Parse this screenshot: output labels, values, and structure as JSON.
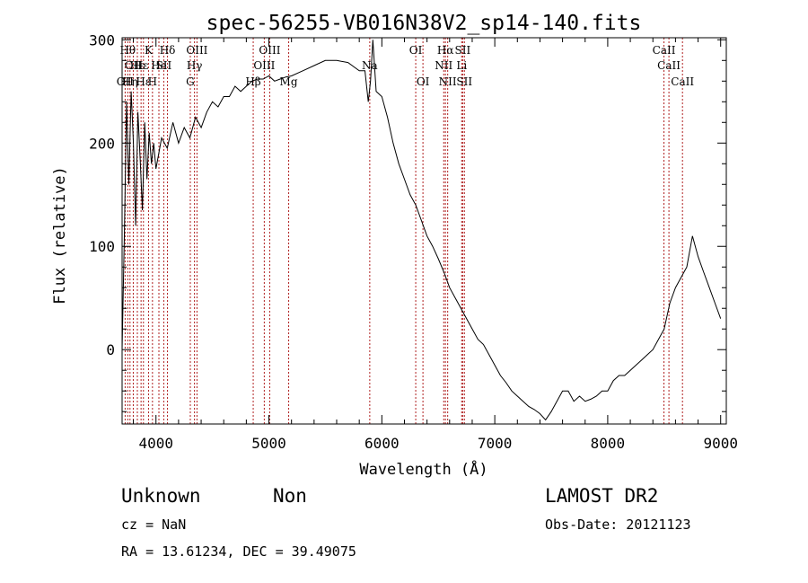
{
  "chart_data": {
    "type": "line",
    "title": "spec-56255-VB016N38V2_sp14-140.fits",
    "xlabel": "Wavelength (Å)",
    "ylabel": "Flux (relative)",
    "xlim": [
      3700,
      9050
    ],
    "ylim": [
      -72,
      302
    ],
    "x_ticks": [
      4000,
      5000,
      6000,
      7000,
      8000,
      9000
    ],
    "y_ticks": [
      0,
      100,
      200,
      300
    ],
    "grid": false,
    "series": [
      {
        "x": [
          3700,
          3720,
          3740,
          3760,
          3780,
          3800,
          3820,
          3840,
          3860,
          3880,
          3900,
          3920,
          3940,
          3960,
          3980,
          4000,
          4050,
          4100,
          4150,
          4200,
          4250,
          4300,
          4350,
          4400,
          4450,
          4500,
          4550,
          4600,
          4650,
          4700,
          4750,
          4800,
          4850,
          4900,
          4950,
          5000,
          5050,
          5100,
          5150,
          5200,
          5300,
          5400,
          5500,
          5600,
          5700,
          5800,
          5850,
          5880,
          5900,
          5920,
          5950,
          6000,
          6050,
          6100,
          6150,
          6200,
          6250,
          6300,
          6350,
          6400,
          6450,
          6500,
          6550,
          6600,
          6650,
          6700,
          6750,
          6800,
          6850,
          6900,
          6950,
          7000,
          7050,
          7100,
          7150,
          7200,
          7250,
          7300,
          7350,
          7400,
          7450,
          7500,
          7550,
          7600,
          7650,
          7700,
          7750,
          7800,
          7850,
          7900,
          7950,
          8000,
          8050,
          8100,
          8150,
          8200,
          8250,
          8300,
          8350,
          8400,
          8450,
          8500,
          8550,
          8600,
          8650,
          8700,
          8750,
          8800,
          8850,
          8900,
          8950,
          9000
        ],
        "values": [
          0,
          110,
          240,
          160,
          250,
          200,
          120,
          230,
          185,
          135,
          220,
          165,
          210,
          180,
          200,
          175,
          205,
          195,
          220,
          200,
          215,
          205,
          225,
          215,
          230,
          240,
          235,
          245,
          245,
          255,
          250,
          255,
          260,
          262,
          262,
          265,
          260,
          262,
          264,
          265,
          270,
          275,
          280,
          280,
          278,
          270,
          270,
          240,
          260,
          300,
          250,
          245,
          225,
          200,
          180,
          165,
          150,
          140,
          125,
          110,
          100,
          88,
          75,
          60,
          50,
          40,
          30,
          20,
          10,
          5,
          -5,
          -15,
          -25,
          -32,
          -40,
          -45,
          -50,
          -55,
          -58,
          -62,
          -68,
          -60,
          -50,
          -40,
          -40,
          -50,
          -45,
          -50,
          -48,
          -45,
          -40,
          -40,
          -30,
          -25,
          -25,
          -20,
          -15,
          -10,
          -5,
          0,
          10,
          20,
          45,
          60,
          70,
          80,
          110,
          90,
          75,
          60,
          45,
          30
        ]
      }
    ],
    "lines": [
      {
        "x": 3727,
        "label": "OII",
        "row": 2
      },
      {
        "x": 3750,
        "label": "Hθ",
        "row": 0
      },
      {
        "x": 3770,
        "label": "Hη",
        "row": 2
      },
      {
        "x": 3799,
        "label": "OII",
        "row": 1
      },
      {
        "x": 3835,
        "label": "Hε",
        "row": 1
      },
      {
        "x": 3868,
        "label": "Hε",
        "row": 1
      },
      {
        "x": 3889,
        "label": "Hε",
        "row": 2
      },
      {
        "x": 3934,
        "label": "K",
        "row": 0
      },
      {
        "x": 3969,
        "label": "H",
        "row": 2
      },
      {
        "x": 4026,
        "label": "He",
        "row": 1
      },
      {
        "x": 4069,
        "label": "SII",
        "row": 1
      },
      {
        "x": 4102,
        "label": "Hδ",
        "row": 0
      },
      {
        "x": 4304,
        "label": "G",
        "row": 2
      },
      {
        "x": 4341,
        "label": "Hγ",
        "row": 1
      },
      {
        "x": 4363,
        "label": "OIII",
        "row": 0
      },
      {
        "x": 4861,
        "label": "Hβ",
        "row": 2
      },
      {
        "x": 4959,
        "label": "OIII",
        "row": 1
      },
      {
        "x": 5007,
        "label": "OIII",
        "row": 0
      },
      {
        "x": 5175,
        "label": "Mg",
        "row": 2
      },
      {
        "x": 5893,
        "label": "Na",
        "row": 1
      },
      {
        "x": 6300,
        "label": "OI",
        "row": 0
      },
      {
        "x": 6364,
        "label": "OI",
        "row": 2
      },
      {
        "x": 6548,
        "label": "NII",
        "row": 1
      },
      {
        "x": 6563,
        "label": "Hα",
        "row": 0
      },
      {
        "x": 6583,
        "label": "NII",
        "row": 2
      },
      {
        "x": 6707,
        "label": "Li",
        "row": 1
      },
      {
        "x": 6716,
        "label": "SII",
        "row": 0
      },
      {
        "x": 6731,
        "label": "SII",
        "row": 2
      },
      {
        "x": 8498,
        "label": "CaII",
        "row": 0
      },
      {
        "x": 8542,
        "label": "CaII",
        "row": 1
      },
      {
        "x": 8662,
        "label": "CaII",
        "row": 2
      }
    ]
  },
  "info": {
    "class": "Unknown",
    "subclass": "Non",
    "cz": "cz = NaN",
    "coords": "RA =  13.61234, DEC =  39.49075",
    "survey": "LAMOST DR2",
    "obs_date": "Obs-Date: 20121123"
  },
  "colors": {
    "line_marker": "#b02020",
    "spectrum": "#000000"
  }
}
